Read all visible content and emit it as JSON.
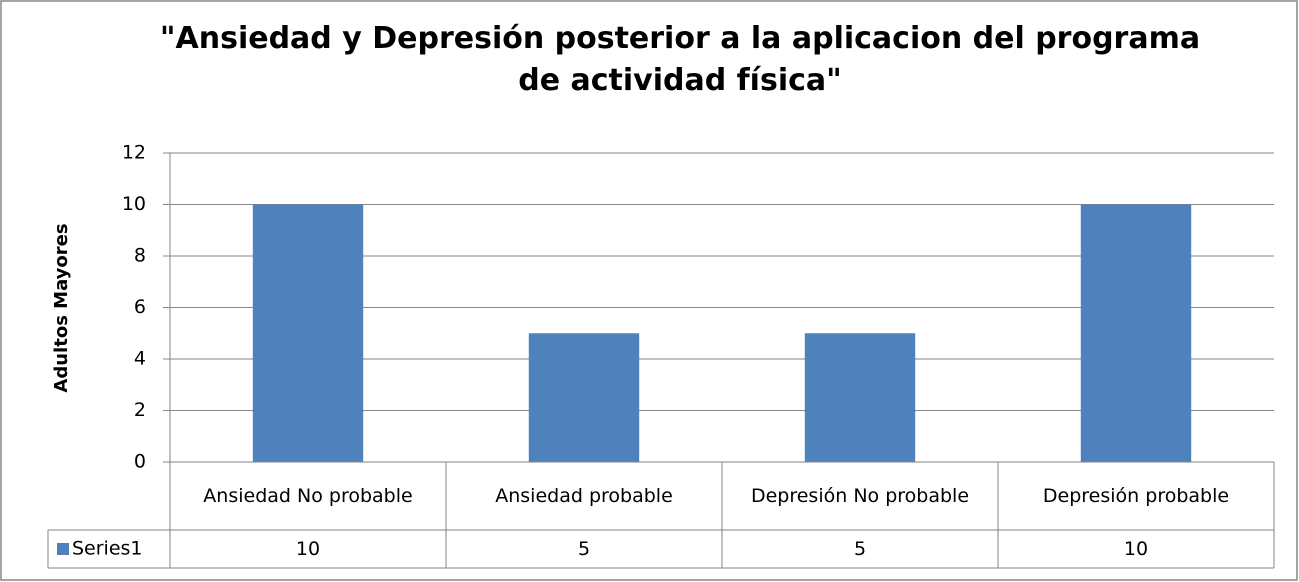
{
  "chart_data": {
    "type": "bar",
    "title": "\"Ansiedad y Depresión posterior a la aplicacion del programa de actividad física\"",
    "y_label": "Adultos Mayores",
    "categories": [
      "Ansiedad No probable",
      "Ansiedad probable",
      "Depresión No probable",
      "Depresión probable"
    ],
    "series": [
      {
        "name": "Series1",
        "color": "#4f81bd",
        "values": [
          10,
          5,
          5,
          10
        ]
      }
    ],
    "ylim": [
      0,
      12
    ],
    "yticks": [
      0,
      2,
      4,
      6,
      8,
      10,
      12
    ],
    "grid": true,
    "data_table": true
  }
}
